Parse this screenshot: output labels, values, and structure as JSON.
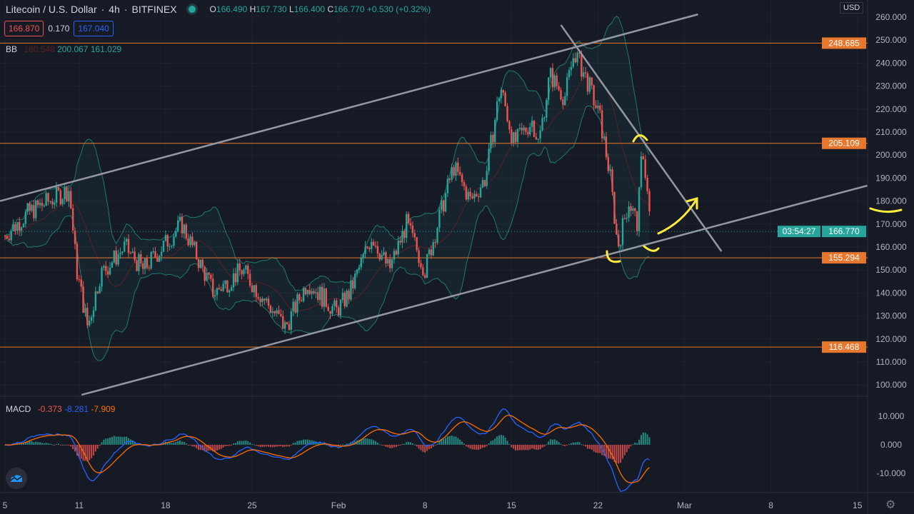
{
  "header": {
    "symbol": "Litecoin / U.S. Dollar",
    "interval": "4h",
    "exchange": "BITFINEX",
    "open_label": "O",
    "open": "166.490",
    "high_label": "H",
    "high": "167.730",
    "low_label": "L",
    "low": "166.400",
    "close_label": "C",
    "close": "166.770",
    "change": "+0.530 (+0.32%)"
  },
  "quote": {
    "bid": "166.870",
    "spread": "0.170",
    "ask": "167.040"
  },
  "indicators": {
    "bb_label": "BB",
    "bb_basis": "180.548",
    "bb_upper": "200.067",
    "bb_lower": "161.029",
    "macd_label": "MACD",
    "macd_hist": "-0.373",
    "macd_line": "-8.281",
    "macd_signal": "-7.909"
  },
  "axis": {
    "currency": "USD",
    "countdown": "03:54:27",
    "last_price": "166.770"
  },
  "colors": {
    "up": "#26a69a",
    "down": "#ef5350",
    "level": "#e8772e",
    "trend": "#9598a1",
    "bb": "#1f7a6c",
    "macd": "#2962ff",
    "signal": "#ff6d00",
    "marker": "#ffeb3b"
  },
  "chart_data": {
    "type": "candlestick",
    "title": "Litecoin / U.S. Dollar 4h BITFINEX",
    "x_unit": "days since Jan 5",
    "xticks": [
      {
        "d": 0,
        "label": "5"
      },
      {
        "d": 6,
        "label": "11"
      },
      {
        "d": 13,
        "label": "18"
      },
      {
        "d": 20,
        "label": "25"
      },
      {
        "d": 27,
        "label": "Feb"
      },
      {
        "d": 34,
        "label": "8"
      },
      {
        "d": 41,
        "label": "15"
      },
      {
        "d": 48,
        "label": "22"
      },
      {
        "d": 55,
        "label": "Mar"
      },
      {
        "d": 62,
        "label": "8"
      },
      {
        "d": 69,
        "label": "15"
      }
    ],
    "ylim": [
      95,
      265
    ],
    "yticks": [
      "100.000",
      "110.000",
      "120.000",
      "130.000",
      "140.000",
      "150.000",
      "160.000",
      "170.000",
      "180.000",
      "190.000",
      "200.000",
      "210.000",
      "220.000",
      "230.000",
      "240.000",
      "250.000",
      "260.000"
    ],
    "macd_ylim": [
      -16,
      16
    ],
    "macd_yticks": [
      "-10.000",
      "0.000",
      "10.000"
    ],
    "price_path": [
      [
        0,
        165
      ],
      [
        1.9,
        175
      ],
      [
        5.2,
        185
      ],
      [
        5.8,
        150
      ],
      [
        6.7,
        125
      ],
      [
        7.7,
        148
      ],
      [
        9.7,
        160
      ],
      [
        11.2,
        150
      ],
      [
        14.3,
        170
      ],
      [
        16.9,
        140
      ],
      [
        19.2,
        150
      ],
      [
        22.7,
        125
      ],
      [
        24.5,
        145
      ],
      [
        26.8,
        132
      ],
      [
        27.9,
        140
      ],
      [
        29.7,
        165
      ],
      [
        31.1,
        150
      ],
      [
        32.5,
        170
      ],
      [
        34.0,
        150
      ],
      [
        36.3,
        195
      ],
      [
        37.7,
        180
      ],
      [
        38.9,
        190
      ],
      [
        40.1,
        230
      ],
      [
        41.2,
        205
      ],
      [
        42.7,
        215
      ],
      [
        43.2,
        205
      ],
      [
        44.1,
        235
      ],
      [
        45.3,
        225
      ],
      [
        46.1,
        245
      ],
      [
        47.3,
        230
      ],
      [
        48.2,
        215
      ],
      [
        49.0,
        190
      ],
      [
        49.6,
        160
      ],
      [
        50.5,
        180
      ],
      [
        51.2,
        170
      ],
      [
        51.6,
        205
      ],
      [
        52.3,
        166.77
      ]
    ],
    "levels": [
      "248.685",
      "205.109",
      "155.294",
      "116.468"
    ],
    "trendlines": [
      {
        "name": "upper-channel",
        "from": [
          -0.4,
          180
        ],
        "to": [
          56.1,
          261.2
        ]
      },
      {
        "name": "lower-channel",
        "from": [
          6.2,
          95.7
        ],
        "to": [
          69.8,
          186.7
        ]
      },
      {
        "name": "down-trendline",
        "from": [
          45,
          256.6
        ],
        "to": [
          58,
          158.1
        ]
      }
    ]
  }
}
